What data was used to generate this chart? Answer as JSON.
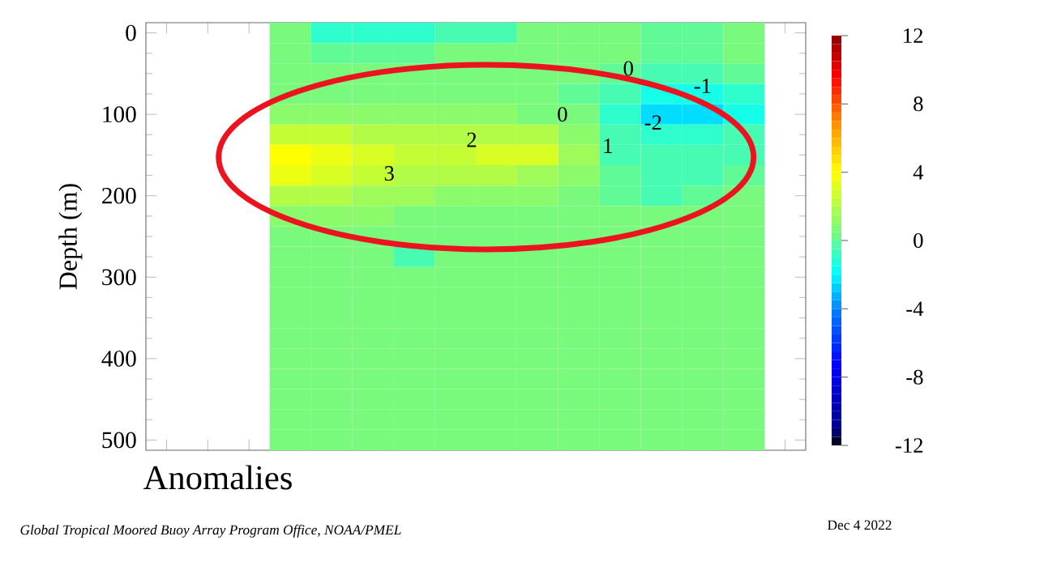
{
  "chart_data": {
    "type": "heatmap",
    "title": "Anomalies",
    "ylabel": "Depth (m)",
    "annotations": [
      "Global Tropical Moored Buoy Array Program Office, NOAA/PMEL",
      "Dec  4 2022",
      "0",
      "-1",
      "0",
      "-2",
      "2",
      "1",
      "3"
    ],
    "categories": [
      null,
      null,
      null,
      null,
      null,
      null,
      null,
      null,
      null,
      null,
      null,
      null
    ],
    "y_categories": [
      "0",
      null,
      null,
      null,
      "100",
      null,
      null,
      null,
      "200",
      null,
      null,
      null,
      "300",
      null,
      null,
      null,
      "400",
      null,
      null,
      null,
      "500"
    ],
    "tick_labels": "y",
    "clim": [
      -12,
      12
    ],
    "cticks": [
      -12,
      -8,
      -4,
      0,
      4,
      8,
      12
    ],
    "cells": [
      [
        0.5,
        -1,
        -1,
        -1,
        -0.5,
        -0.5,
        0.5,
        0.5,
        0.5,
        0,
        0,
        0.5
      ],
      [
        0.5,
        0,
        0,
        0,
        0.5,
        0.5,
        0.5,
        0.5,
        0.5,
        0,
        0,
        0.5
      ],
      [
        0.5,
        0.5,
        0.5,
        0.5,
        0.5,
        0.5,
        0.5,
        0.5,
        0,
        -0.5,
        -0.5,
        0
      ],
      [
        0.5,
        0.5,
        0.5,
        0.5,
        0.5,
        0.5,
        0.5,
        0,
        -0.5,
        -1.5,
        -1.5,
        -1
      ],
      [
        1,
        1,
        1,
        1,
        1,
        1,
        0.5,
        0.5,
        -1,
        -2.5,
        -2.5,
        -1.5
      ],
      [
        2.5,
        2.5,
        2,
        2,
        2,
        2,
        2,
        1,
        -0.5,
        -1,
        -1,
        -0.5
      ],
      [
        4,
        3.5,
        3,
        2.5,
        2.5,
        3,
        3,
        1.5,
        -0.5,
        -0.5,
        -0.5,
        -0.5
      ],
      [
        3.5,
        3,
        2.5,
        2,
        2,
        2,
        1.5,
        1,
        0,
        -0.5,
        -0.5,
        0
      ],
      [
        2,
        2,
        1.5,
        1.5,
        1,
        1,
        1,
        0.5,
        0,
        -0.5,
        0,
        0.5
      ],
      [
        1,
        1,
        1,
        0.5,
        0.5,
        0.5,
        0.5,
        0.5,
        0.5,
        0.5,
        0.5,
        0.5
      ],
      [
        0.5,
        0.5,
        0.5,
        0.5,
        0.5,
        0.5,
        0.5,
        0.5,
        0.5,
        0.5,
        0.5,
        0.5
      ],
      [
        0.5,
        0.5,
        0.5,
        -0.5,
        0.5,
        0.5,
        0.5,
        0.5,
        0.5,
        0.5,
        0.5,
        0.5
      ],
      [
        0.5,
        0.5,
        0.5,
        0.5,
        0.5,
        0.5,
        0.5,
        0.5,
        0.5,
        0.5,
        0.5,
        0.5
      ],
      [
        0.5,
        0.5,
        0.5,
        0.5,
        0.5,
        0.5,
        0.5,
        0.5,
        0.5,
        0.5,
        0.5,
        0.5
      ],
      [
        0.5,
        0.5,
        0.5,
        0.5,
        0.5,
        0.5,
        0.5,
        0.5,
        0.5,
        0.5,
        0.5,
        0.5
      ],
      [
        0.5,
        0.5,
        0.5,
        0.5,
        0.5,
        0.5,
        0.5,
        0.5,
        0.5,
        0.5,
        0.5,
        0.5
      ],
      [
        0.5,
        0.5,
        0.5,
        0.5,
        0.5,
        0.5,
        0.5,
        0.5,
        0.5,
        0.5,
        0.5,
        0.5
      ],
      [
        0.5,
        0.5,
        0.5,
        0.5,
        0.5,
        0.5,
        0.5,
        0.5,
        0.5,
        0.5,
        0.5,
        0.5
      ],
      [
        0.5,
        0.5,
        0.5,
        0.5,
        0.5,
        0.5,
        0.5,
        0.5,
        0.5,
        0.5,
        0.5,
        0.5
      ],
      [
        0.5,
        0.5,
        0.5,
        0.5,
        0.5,
        0.5,
        0.5,
        0.5,
        0.5,
        0.5,
        0.5,
        0.5
      ],
      [
        0.5,
        0.5,
        0.5,
        0.5,
        0.5,
        0.5,
        0.5,
        0.5,
        0.5,
        0.5,
        0.5,
        0.5
      ]
    ]
  }
}
